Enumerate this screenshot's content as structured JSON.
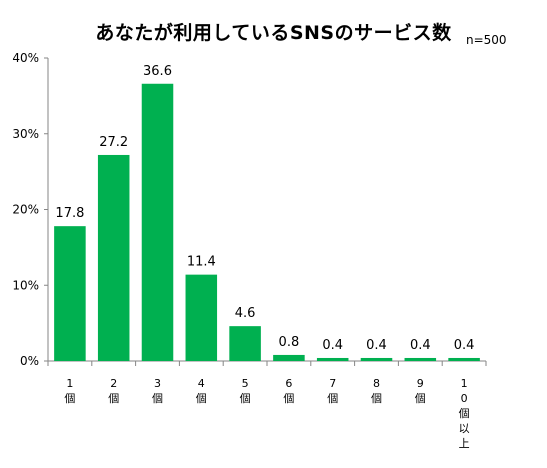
{
  "chart_data": {
    "type": "bar",
    "title": "あなたが利用しているSNSのサービス数",
    "annotation": "n=500",
    "categories": [
      "1個",
      "2個",
      "3個",
      "4個",
      "5個",
      "6個",
      "7個",
      "8個",
      "9個",
      "10個以上"
    ],
    "category_label_lines": [
      [
        "1",
        "個"
      ],
      [
        "2",
        "個"
      ],
      [
        "3",
        "個"
      ],
      [
        "4",
        "個"
      ],
      [
        "5",
        "個"
      ],
      [
        "6",
        "個"
      ],
      [
        "7",
        "個"
      ],
      [
        "8",
        "個"
      ],
      [
        "9",
        "個"
      ],
      [
        "1",
        "0",
        "個",
        "以",
        "上"
      ]
    ],
    "values": [
      17.8,
      27.2,
      36.6,
      11.4,
      4.6,
      0.8,
      0.4,
      0.4,
      0.4,
      0.4
    ],
    "value_labels": [
      "17.8",
      "27.2",
      "36.6",
      "11.4",
      "4.6",
      "0.8",
      "0.4",
      "0.4",
      "0.4",
      "0.4"
    ],
    "ylim": [
      0,
      40
    ],
    "yticks": [
      0,
      10,
      20,
      30,
      40
    ],
    "ytick_labels": [
      "0%",
      "10%",
      "20%",
      "30%",
      "40%"
    ],
    "xlabel": "",
    "ylabel": "",
    "grid": false,
    "legend": "none",
    "bar_color": "#00b050",
    "axis_color": "#868686"
  }
}
